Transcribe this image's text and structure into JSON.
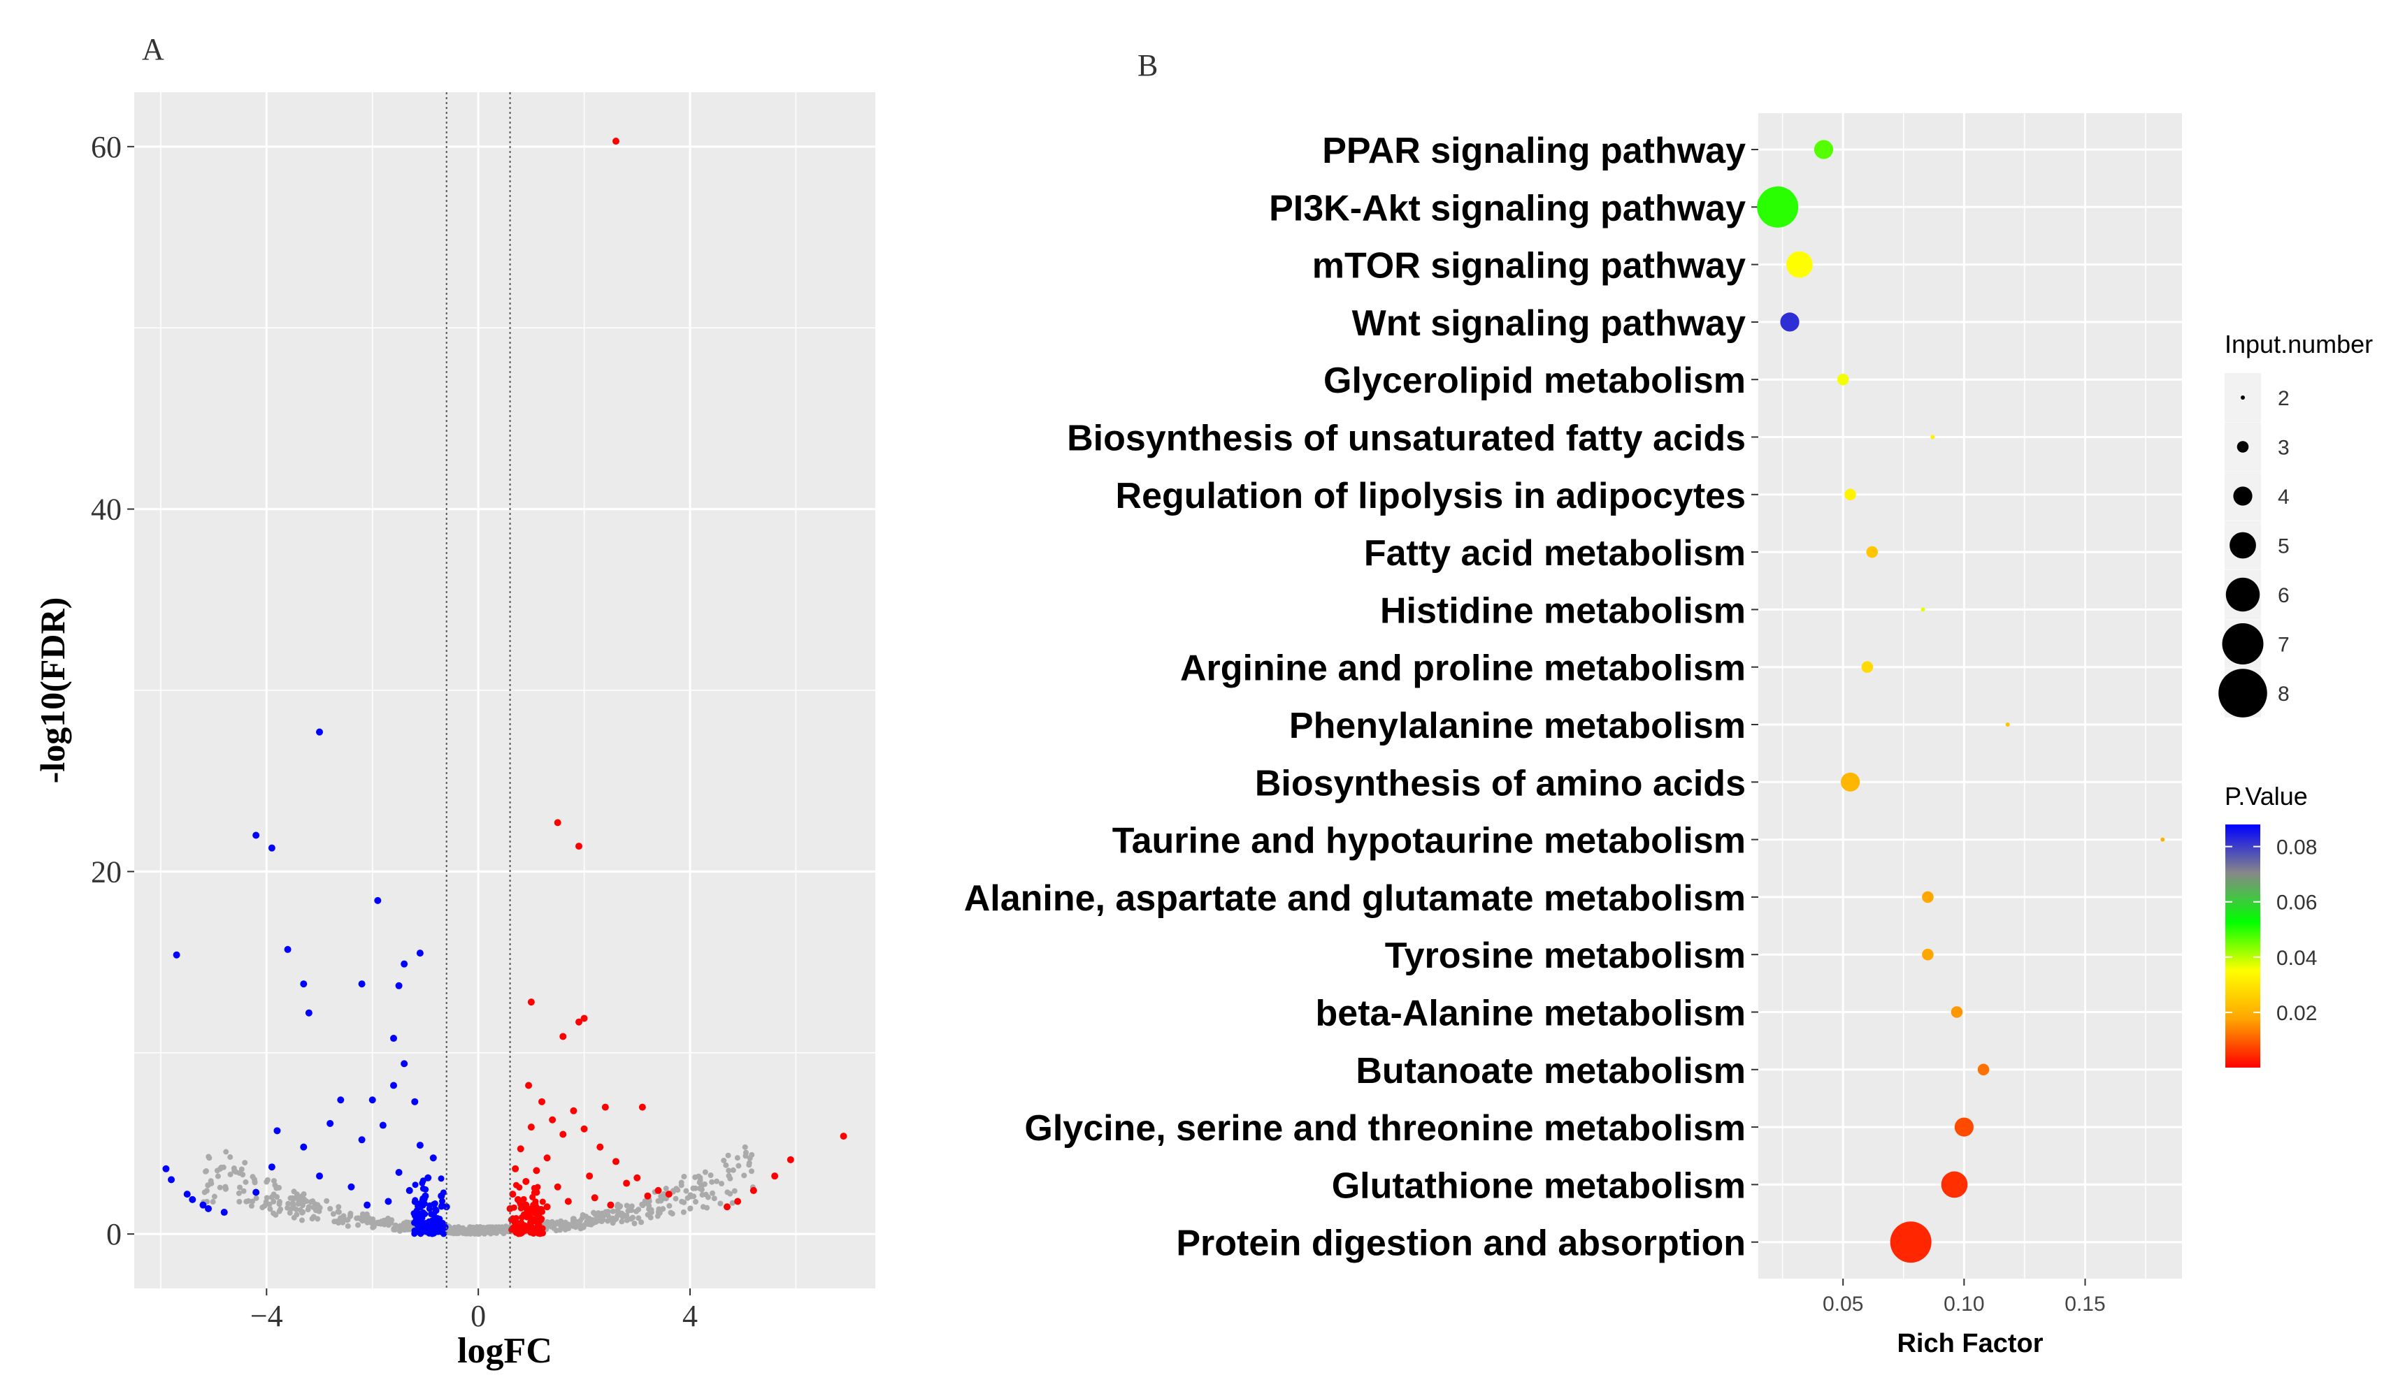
{
  "chart_data": [
    {
      "panel_label": "A",
      "type": "scatter",
      "subtype": "volcano",
      "xlabel": "logFC",
      "ylabel": "-log10(FDR)",
      "xlim": [
        -6.5,
        7.5
      ],
      "ylim": [
        -3,
        63
      ],
      "xticks": [
        -4,
        0,
        4
      ],
      "xtick_labels": [
        "−4",
        "0",
        "4"
      ],
      "yticks": [
        0,
        20,
        40,
        60
      ],
      "ytick_labels": [
        "0",
        "20",
        "40",
        "60"
      ],
      "thresholds_x": [
        -0.6,
        0.6
      ],
      "colors": {
        "up": "#ff0000",
        "down": "#0000ff",
        "ns": "#aaaaaa",
        "panel_bg": "#ebebeb",
        "grid": "#ffffff",
        "threshold_line": "#555555"
      },
      "highlighted_points": {
        "up": [
          [
            2.6,
            60.3
          ],
          [
            1.5,
            22.7
          ],
          [
            1.9,
            21.4
          ],
          [
            1.0,
            12.8
          ],
          [
            1.9,
            11.7
          ],
          [
            2.0,
            11.9
          ],
          [
            1.6,
            10.9
          ],
          [
            2.4,
            7.0
          ],
          [
            3.1,
            7.0
          ],
          [
            6.9,
            5.4
          ],
          [
            5.9,
            4.1
          ],
          [
            5.6,
            3.2
          ],
          [
            5.2,
            2.4
          ],
          [
            4.9,
            1.8
          ],
          [
            4.7,
            1.5
          ],
          [
            3.6,
            2.2
          ],
          [
            3.4,
            2.4
          ],
          [
            3.2,
            2.1
          ],
          [
            3.0,
            3.1
          ],
          [
            2.8,
            2.8
          ],
          [
            2.6,
            4.0
          ],
          [
            2.3,
            4.8
          ],
          [
            2.1,
            3.2
          ],
          [
            2.0,
            5.8
          ],
          [
            1.8,
            6.8
          ],
          [
            1.6,
            5.5
          ],
          [
            1.4,
            6.3
          ],
          [
            1.3,
            4.2
          ],
          [
            1.2,
            7.3
          ],
          [
            1.1,
            3.5
          ],
          [
            1.0,
            5.9
          ],
          [
            0.95,
            8.2
          ],
          [
            0.9,
            2.9
          ],
          [
            0.8,
            4.7
          ],
          [
            0.75,
            1.9
          ],
          [
            0.7,
            3.6
          ],
          [
            0.65,
            2.2
          ],
          [
            0.6,
            1.4
          ],
          [
            1.5,
            2.6
          ],
          [
            1.7,
            1.8
          ],
          [
            2.2,
            2.0
          ],
          [
            2.5,
            1.6
          ],
          [
            1.3,
            1.5
          ],
          [
            0.9,
            1.6
          ],
          [
            1.1,
            2.3
          ]
        ],
        "down": [
          [
            -3.0,
            27.7
          ],
          [
            -4.2,
            22.0
          ],
          [
            -3.9,
            21.3
          ],
          [
            -1.9,
            18.4
          ],
          [
            -3.6,
            15.7
          ],
          [
            -5.7,
            15.4
          ],
          [
            -1.1,
            15.5
          ],
          [
            -1.4,
            14.9
          ],
          [
            -1.5,
            13.7
          ],
          [
            -2.2,
            13.8
          ],
          [
            -3.3,
            13.8
          ],
          [
            -3.2,
            12.2
          ],
          [
            -1.6,
            10.8
          ],
          [
            -5.9,
            3.6
          ],
          [
            -5.8,
            3.0
          ],
          [
            -5.5,
            2.2
          ],
          [
            -5.4,
            1.9
          ],
          [
            -5.2,
            1.6
          ],
          [
            -5.1,
            1.4
          ],
          [
            -4.8,
            1.2
          ],
          [
            -4.2,
            2.3
          ],
          [
            -3.9,
            3.7
          ],
          [
            -3.8,
            5.7
          ],
          [
            -3.3,
            4.8
          ],
          [
            -3.0,
            3.2
          ],
          [
            -2.8,
            6.1
          ],
          [
            -2.6,
            7.4
          ],
          [
            -2.4,
            2.6
          ],
          [
            -2.2,
            5.2
          ],
          [
            -2.0,
            7.4
          ],
          [
            -1.8,
            6.0
          ],
          [
            -1.6,
            8.2
          ],
          [
            -1.4,
            9.4
          ],
          [
            -1.2,
            7.3
          ],
          [
            -1.1,
            4.9
          ],
          [
            -0.95,
            3.1
          ],
          [
            -0.85,
            4.2
          ],
          [
            -0.7,
            2.1
          ],
          [
            -0.6,
            1.5
          ],
          [
            -1.3,
            2.4
          ],
          [
            -1.5,
            3.4
          ],
          [
            -1.7,
            1.8
          ],
          [
            -2.1,
            1.6
          ],
          [
            -0.8,
            1.3
          ],
          [
            -1.0,
            2.1
          ]
        ]
      },
      "legend": []
    },
    {
      "panel_label": "B",
      "type": "scatter",
      "subtype": "bubble",
      "title": "",
      "xlabel": "Rich Factor",
      "ylabel": "",
      "xlim": [
        0.015,
        0.19
      ],
      "xticks": [
        0.05,
        0.1,
        0.15
      ],
      "xtick_labels": [
        "0.05",
        "0.10",
        "0.15"
      ],
      "colors": {
        "panel_bg": "#ebebeb",
        "grid": "#ffffff"
      },
      "categories": [
        "PPAR signaling pathway",
        "PI3K-Akt signaling pathway",
        "mTOR signaling pathway",
        "Wnt signaling pathway",
        "Glycerolipid metabolism",
        "Biosynthesis of unsaturated fatty acids",
        "Regulation of lipolysis in adipocytes",
        "Fatty acid metabolism",
        "Histidine metabolism",
        "Arginine and proline metabolism",
        "Phenylalanine metabolism",
        "Biosynthesis of amino acids",
        "Taurine and hypotaurine metabolism",
        "Alanine, aspartate and glutamate metabolism",
        "Tyrosine metabolism",
        "beta-Alanine metabolism",
        "Butanoate metabolism",
        "Glycine, serine and threonine metabolism",
        "Glutathione metabolism",
        "Protein digestion and absorption"
      ],
      "rich_factor": [
        0.042,
        0.023,
        0.032,
        0.028,
        0.05,
        0.087,
        0.053,
        0.062,
        0.083,
        0.06,
        0.118,
        0.053,
        0.182,
        0.085,
        0.085,
        0.097,
        0.108,
        0.1,
        0.096,
        0.078
      ],
      "input_number": [
        4,
        7,
        5,
        4,
        3,
        2,
        3,
        3,
        2,
        3,
        2,
        4,
        2,
        3,
        3,
        3,
        3,
        4,
        5,
        7
      ],
      "p_value": [
        0.047,
        0.05,
        0.035,
        0.082,
        0.036,
        0.032,
        0.033,
        0.024,
        0.037,
        0.028,
        0.024,
        0.021,
        0.02,
        0.018,
        0.018,
        0.016,
        0.012,
        0.008,
        0.005,
        0.004
      ],
      "legend_size": {
        "title": "Input.number",
        "values": [
          2,
          3,
          4,
          5,
          6,
          7,
          8
        ]
      },
      "legend_color": {
        "title": "P.Value",
        "range": [
          0.0,
          0.088
        ],
        "ticks": [
          0.08,
          0.06,
          0.04,
          0.02
        ],
        "tick_labels": [
          "0.08",
          "0.06",
          "0.04",
          "0.02"
        ],
        "gradient_low_to_high": [
          "#ff0000",
          "#ffa500",
          "#ffff00",
          "#00ff00",
          "#888888",
          "#0000ff"
        ]
      }
    }
  ]
}
